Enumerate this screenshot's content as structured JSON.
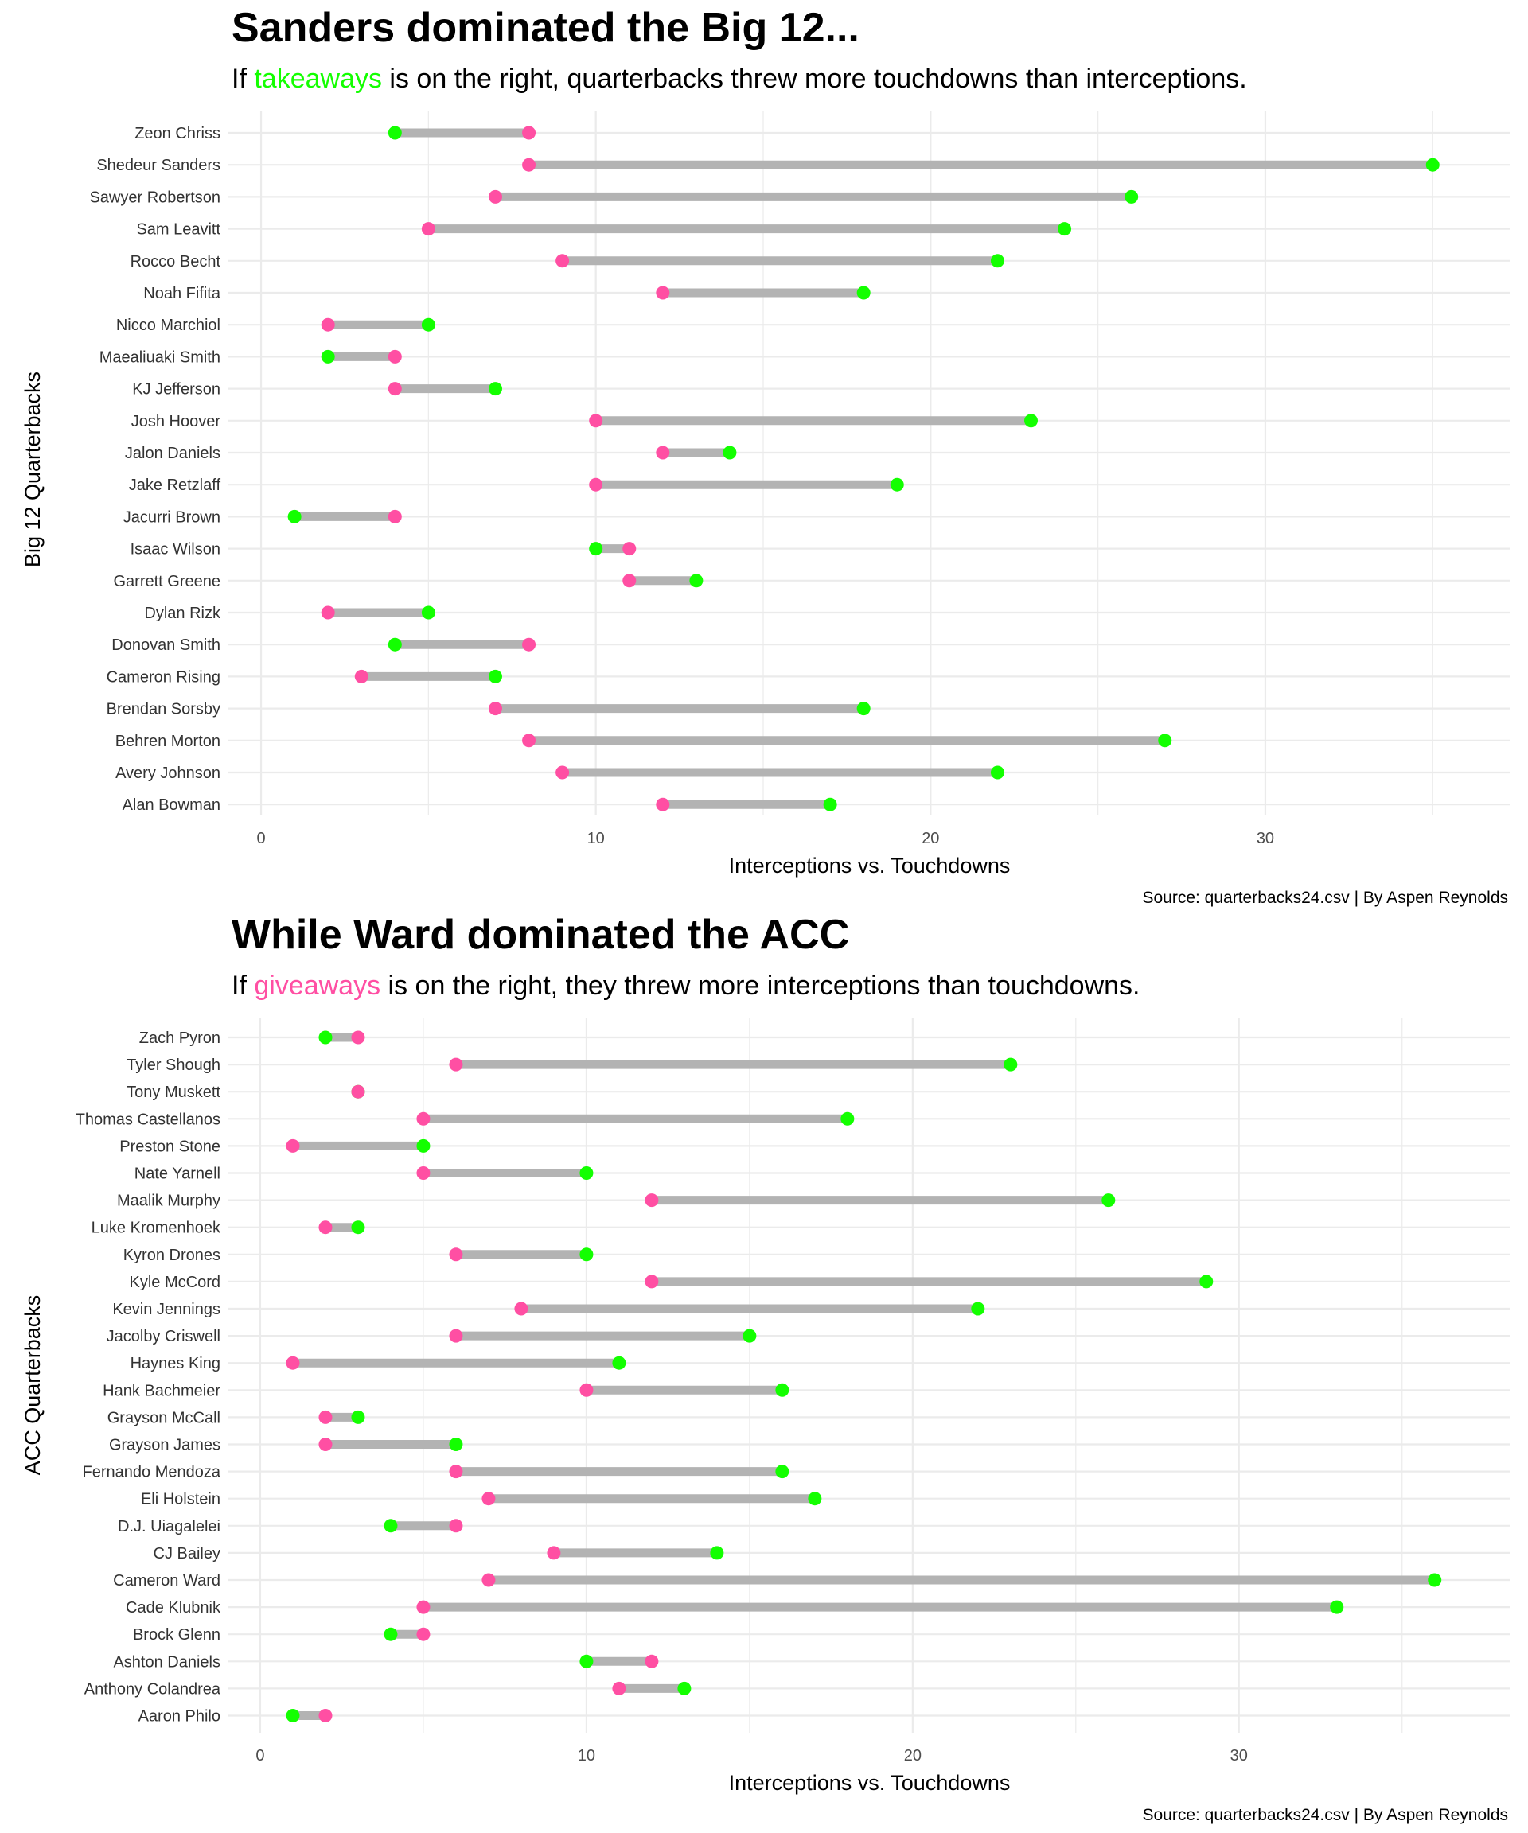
{
  "chart_data": [
    {
      "type": "dumbbell",
      "title": "Sanders dominated the Big 12...",
      "subtitle": {
        "before": "If ",
        "highlight": "takeaways",
        "after": " is on the right, quarterbacks threw more touchdowns than interceptions."
      },
      "xlabel": "Interceptions vs. Touchdowns",
      "ylabel": "Big 12 Quarterbacks",
      "caption": "Source: quarterbacks24.csv | By Aspen Reynolds",
      "xlim": [
        -1,
        37.3
      ],
      "xticks": [
        0,
        10,
        20,
        30
      ],
      "grid": true,
      "series": [
        {
          "name": "Interceptions",
          "color": "#ff4fa3"
        },
        {
          "name": "Touchdowns",
          "color": "#13ff00"
        }
      ],
      "categories": [
        "Zeon Chriss",
        "Shedeur Sanders",
        "Sawyer Robertson",
        "Sam Leavitt",
        "Rocco Becht",
        "Noah Fifita",
        "Nicco Marchiol",
        "Maealiuaki Smith",
        "KJ Jefferson",
        "Josh Hoover",
        "Jalon Daniels",
        "Jake Retzlaff",
        "Jacurri Brown",
        "Isaac Wilson",
        "Garrett Greene",
        "Dylan Rizk",
        "Donovan Smith",
        "Cameron Rising",
        "Brendan Sorsby",
        "Behren Morton",
        "Avery Johnson",
        "Alan Bowman"
      ],
      "interceptions": [
        8,
        8,
        7,
        5,
        9,
        12,
        2,
        4,
        4,
        10,
        12,
        10,
        4,
        11,
        11,
        2,
        8,
        3,
        7,
        8,
        9,
        12
      ],
      "touchdowns": [
        4,
        35,
        26,
        24,
        22,
        18,
        5,
        2,
        7,
        23,
        14,
        19,
        1,
        10,
        13,
        5,
        4,
        7,
        18,
        27,
        22,
        17
      ]
    },
    {
      "type": "dumbbell",
      "title": "While Ward dominated the ACC",
      "subtitle": {
        "before": "If ",
        "highlight": "giveaways",
        "after": " is on the right, they threw more interceptions than touchdowns."
      },
      "xlabel": "Interceptions vs. Touchdowns",
      "ylabel": "ACC Quarterbacks",
      "caption": "Source: quarterbacks24.csv | By Aspen Reynolds",
      "xlim": [
        -1,
        38.3
      ],
      "xticks": [
        0,
        10,
        20,
        30
      ],
      "grid": true,
      "series": [
        {
          "name": "Interceptions",
          "color": "#ff4fa3"
        },
        {
          "name": "Touchdowns",
          "color": "#13ff00"
        }
      ],
      "categories": [
        "Zach Pyron",
        "Tyler Shough",
        "Tony Muskett",
        "Thomas Castellanos",
        "Preston Stone",
        "Nate Yarnell",
        "Maalik Murphy",
        "Luke Kromenhoek",
        "Kyron Drones",
        "Kyle McCord",
        "Kevin Jennings",
        "Jacolby Criswell",
        "Haynes King",
        "Hank Bachmeier",
        "Grayson McCall",
        "Grayson James",
        "Fernando Mendoza",
        "Eli Holstein",
        "D.J. Uiagalelei",
        "CJ Bailey",
        "Cameron Ward",
        "Cade Klubnik",
        "Brock Glenn",
        "Ashton Daniels",
        "Anthony Colandrea",
        "Aaron Philo"
      ],
      "interceptions": [
        3,
        6,
        3,
        5,
        1,
        5,
        12,
        2,
        6,
        12,
        8,
        6,
        1,
        10,
        2,
        2,
        6,
        7,
        6,
        9,
        7,
        5,
        5,
        12,
        11,
        2
      ],
      "touchdowns": [
        2,
        23,
        3,
        18,
        5,
        10,
        26,
        3,
        10,
        29,
        22,
        15,
        11,
        16,
        3,
        6,
        16,
        17,
        4,
        14,
        36,
        33,
        4,
        10,
        13,
        1
      ]
    }
  ]
}
